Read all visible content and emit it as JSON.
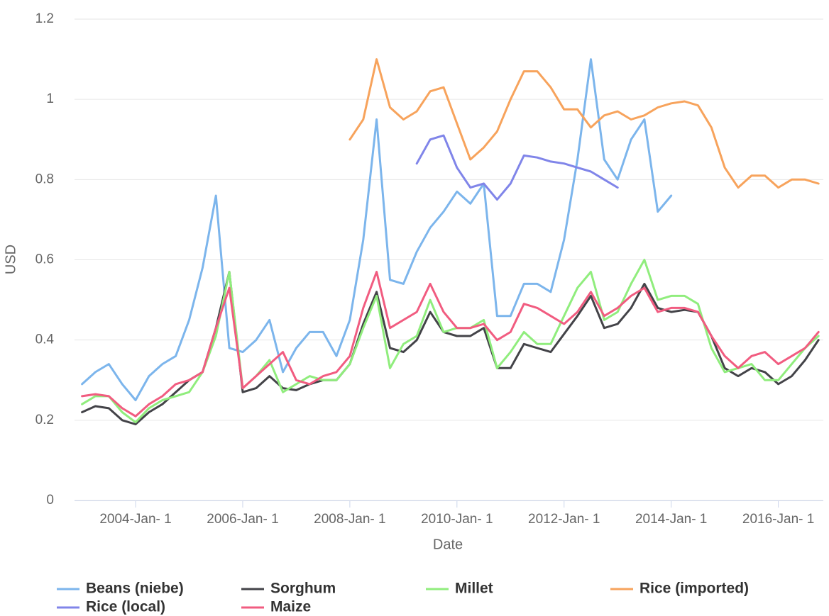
{
  "chart_data": {
    "type": "line",
    "x_label": "Date",
    "y_label": "USD",
    "x": [
      2003,
      2003.25,
      2003.5,
      2003.75,
      2004,
      2004.25,
      2004.5,
      2004.75,
      2005,
      2005.25,
      2005.5,
      2005.75,
      2006,
      2006.25,
      2006.5,
      2006.75,
      2007,
      2007.25,
      2007.5,
      2007.75,
      2008,
      2008.25,
      2008.5,
      2008.75,
      2009,
      2009.25,
      2009.5,
      2009.75,
      2010,
      2010.25,
      2010.5,
      2010.75,
      2011,
      2011.25,
      2011.5,
      2011.75,
      2012,
      2012.25,
      2012.5,
      2012.75,
      2013,
      2013.25,
      2013.5,
      2013.75,
      2014,
      2014.25,
      2014.5,
      2014.75,
      2015,
      2015.25,
      2015.5,
      2015.75,
      2016,
      2016.25,
      2016.5,
      2016.75
    ],
    "xlim": [
      2002.86,
      2016.84
    ],
    "xticks": [
      {
        "value": 2004,
        "label": "2004-Jan- 1"
      },
      {
        "value": 2006,
        "label": "2006-Jan- 1"
      },
      {
        "value": 2008,
        "label": "2008-Jan- 1"
      },
      {
        "value": 2010,
        "label": "2010-Jan- 1"
      },
      {
        "value": 2012,
        "label": "2012-Jan- 1"
      },
      {
        "value": 2014,
        "label": "2014-Jan- 1"
      },
      {
        "value": 2016,
        "label": "2016-Jan- 1"
      }
    ],
    "ylim": [
      0,
      1.2
    ],
    "yticks": [
      0,
      0.2,
      0.4,
      0.6,
      0.8,
      1,
      1.2
    ],
    "grid": true,
    "series": [
      {
        "name": "Beans (niebe)",
        "color": "#7cb5ec",
        "values": [
          0.29,
          0.32,
          0.34,
          0.29,
          0.25,
          0.31,
          0.34,
          0.36,
          0.45,
          0.58,
          0.76,
          0.38,
          0.37,
          0.4,
          0.45,
          0.32,
          0.38,
          0.42,
          0.42,
          0.36,
          0.45,
          0.65,
          0.95,
          0.55,
          0.54,
          0.62,
          0.68,
          0.72,
          0.77,
          0.74,
          0.79,
          0.46,
          0.46,
          0.54,
          0.54,
          0.52,
          0.65,
          0.85,
          1.1,
          0.85,
          0.8,
          0.9,
          0.95,
          0.72,
          0.76,
          null,
          null,
          null,
          null,
          null,
          null,
          null,
          null,
          null,
          null,
          null
        ]
      },
      {
        "name": "Sorghum",
        "color": "#434348",
        "values": [
          0.22,
          0.235,
          0.23,
          0.2,
          0.19,
          0.22,
          0.24,
          0.27,
          0.3,
          0.32,
          0.43,
          0.57,
          0.27,
          0.28,
          0.31,
          0.28,
          0.275,
          0.29,
          0.3,
          0.3,
          0.34,
          0.44,
          0.52,
          0.38,
          0.37,
          0.4,
          0.47,
          0.42,
          0.41,
          0.41,
          0.43,
          0.33,
          0.33,
          0.39,
          0.38,
          0.37,
          0.415,
          0.46,
          0.51,
          0.43,
          0.44,
          0.48,
          0.54,
          0.48,
          0.47,
          0.475,
          0.47,
          0.41,
          0.33,
          0.31,
          0.33,
          0.32,
          0.29,
          0.31,
          0.35,
          0.4
        ]
      },
      {
        "name": "Millet",
        "color": "#90ed7d",
        "values": [
          0.24,
          0.26,
          0.26,
          0.22,
          0.195,
          0.23,
          0.25,
          0.26,
          0.27,
          0.32,
          0.41,
          0.57,
          0.28,
          0.31,
          0.35,
          0.27,
          0.29,
          0.31,
          0.3,
          0.3,
          0.34,
          0.43,
          0.51,
          0.33,
          0.39,
          0.41,
          0.5,
          0.42,
          0.43,
          0.43,
          0.45,
          0.33,
          0.37,
          0.42,
          0.39,
          0.39,
          0.46,
          0.53,
          0.57,
          0.45,
          0.47,
          0.54,
          0.6,
          0.5,
          0.51,
          0.51,
          0.49,
          0.38,
          0.32,
          0.33,
          0.34,
          0.3,
          0.3,
          0.34,
          0.38,
          0.41
        ]
      },
      {
        "name": "Rice (imported)",
        "color": "#f7a35c",
        "values": [
          null,
          null,
          null,
          null,
          null,
          null,
          null,
          null,
          null,
          null,
          null,
          null,
          null,
          null,
          null,
          null,
          null,
          null,
          null,
          null,
          0.9,
          0.95,
          1.1,
          0.98,
          0.95,
          0.97,
          1.02,
          1.03,
          0.94,
          0.85,
          0.88,
          0.92,
          1.0,
          1.07,
          1.07,
          1.03,
          0.975,
          0.975,
          0.93,
          0.96,
          0.97,
          0.95,
          0.96,
          0.98,
          0.99,
          0.995,
          0.985,
          0.93,
          0.83,
          0.78,
          0.81,
          0.81,
          0.78,
          0.8,
          0.8,
          0.79
        ]
      },
      {
        "name": "Rice (local)",
        "color": "#8085e9",
        "values": [
          null,
          null,
          null,
          null,
          null,
          null,
          null,
          null,
          null,
          null,
          null,
          null,
          null,
          null,
          null,
          null,
          null,
          null,
          null,
          null,
          null,
          null,
          null,
          null,
          null,
          0.84,
          0.9,
          0.91,
          0.83,
          0.78,
          0.79,
          0.75,
          0.79,
          0.86,
          0.855,
          0.845,
          0.84,
          0.83,
          0.82,
          0.8,
          0.78,
          null,
          null,
          null,
          null,
          null,
          null,
          null,
          null,
          null,
          null,
          null,
          null,
          null,
          null,
          null
        ]
      },
      {
        "name": "Maize",
        "color": "#f15c80",
        "values": [
          0.26,
          0.265,
          0.26,
          0.23,
          0.21,
          0.24,
          0.26,
          0.29,
          0.3,
          0.32,
          0.43,
          0.53,
          0.28,
          0.31,
          0.34,
          0.37,
          0.3,
          0.29,
          0.31,
          0.32,
          0.36,
          0.48,
          0.57,
          0.43,
          0.45,
          0.47,
          0.54,
          0.47,
          0.43,
          0.43,
          0.44,
          0.4,
          0.42,
          0.49,
          0.48,
          0.46,
          0.44,
          0.47,
          0.52,
          0.46,
          0.48,
          0.51,
          0.53,
          0.47,
          0.48,
          0.48,
          0.47,
          0.41,
          0.36,
          0.33,
          0.36,
          0.37,
          0.34,
          0.36,
          0.38,
          0.42
        ]
      }
    ]
  }
}
